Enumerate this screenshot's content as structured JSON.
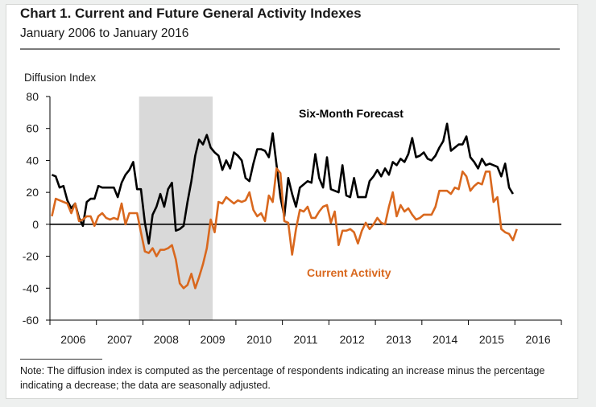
{
  "header": {
    "title": "Chart 1. Current and Future General Activity Indexes",
    "subtitle": "January 2006 to January 2016"
  },
  "note": "Note: The diffusion index is computed as the percentage of respondents indicating an increase minus the percentage indicating a decrease; the data are seasonally adjusted.",
  "colors": {
    "forecast": "#000000",
    "current": "#d9681e",
    "recession": "#d9d9d9",
    "axis": "#000000"
  },
  "chart_data": {
    "type": "line",
    "ylabel": "Diffusion Index",
    "ylim": [
      -60,
      80
    ],
    "y_ticks": [
      80,
      60,
      40,
      20,
      0,
      -20,
      -40,
      -60
    ],
    "x_tick_labels": [
      "2006",
      "2007",
      "2008",
      "2009",
      "2010",
      "2011",
      "2012",
      "2013",
      "2014",
      "2015",
      "2016"
    ],
    "x_start": "2006-01",
    "recession_shading": {
      "start": "2007-12",
      "end": "2009-06"
    },
    "grid": false,
    "series": [
      {
        "name": "Six-Month Forecast",
        "color": "#000000",
        "values": [
          31,
          30,
          23,
          24,
          15,
          10,
          13,
          4,
          -1,
          14,
          16,
          16,
          24,
          23,
          23,
          23,
          23,
          17,
          26,
          31,
          34,
          39,
          22,
          22,
          1,
          -12,
          6,
          11,
          19,
          11,
          22,
          26,
          -4,
          -3,
          -1,
          14,
          27,
          43,
          53,
          50,
          56,
          48,
          45,
          43,
          34,
          40,
          35,
          45,
          43,
          40,
          29,
          27,
          38,
          47,
          47,
          46,
          42,
          57,
          37,
          17,
          5,
          29,
          19,
          11,
          23,
          25,
          27,
          26,
          44,
          29,
          23,
          42,
          22,
          21,
          20,
          37,
          18,
          17,
          29,
          17,
          17,
          17,
          27,
          30,
          34,
          30,
          35,
          31,
          39,
          37,
          41,
          39,
          44,
          54,
          42,
          43,
          45,
          41,
          40,
          43,
          48,
          52,
          63,
          46,
          48,
          50,
          50,
          55,
          42,
          39,
          35,
          41,
          37,
          38,
          37,
          36,
          30,
          38,
          23,
          19
        ],
        "label_pos": "top-right"
      },
      {
        "name": "Current Activity",
        "color": "#d9681e",
        "values": [
          5,
          16,
          15,
          14,
          13,
          7,
          13,
          2,
          3,
          5,
          5,
          -1,
          5,
          7,
          4,
          3,
          4,
          3,
          13,
          0,
          7,
          7,
          7,
          -5,
          -17,
          -18,
          -15,
          -20,
          -16,
          -16,
          -15,
          -13,
          -22,
          -37,
          -40,
          -38,
          -31,
          -40,
          -33,
          -25,
          -15,
          3,
          -5,
          14,
          13,
          17,
          15,
          13,
          15,
          14,
          15,
          20,
          9,
          5,
          7,
          2,
          18,
          14,
          35,
          32,
          2,
          1,
          -19,
          -3,
          9,
          8,
          11,
          4,
          4,
          8,
          11,
          12,
          1,
          8,
          -13,
          -4,
          -4,
          -3,
          -5,
          -12,
          -4,
          1,
          -3,
          0,
          4,
          1,
          0,
          11,
          20,
          5,
          12,
          8,
          10,
          6,
          3,
          4,
          6,
          6,
          6,
          11,
          21,
          21,
          21,
          19,
          23,
          22,
          33,
          30,
          21,
          24,
          26,
          25,
          33,
          33,
          14,
          17,
          -3,
          -5,
          -6,
          -10,
          -3
        ],
        "label_pos": "bottom-center"
      }
    ],
    "legend": [
      {
        "text": "Six-Month Forecast",
        "position": "top-right"
      },
      {
        "text": "Current Activity",
        "position": "bottom-center"
      }
    ]
  }
}
